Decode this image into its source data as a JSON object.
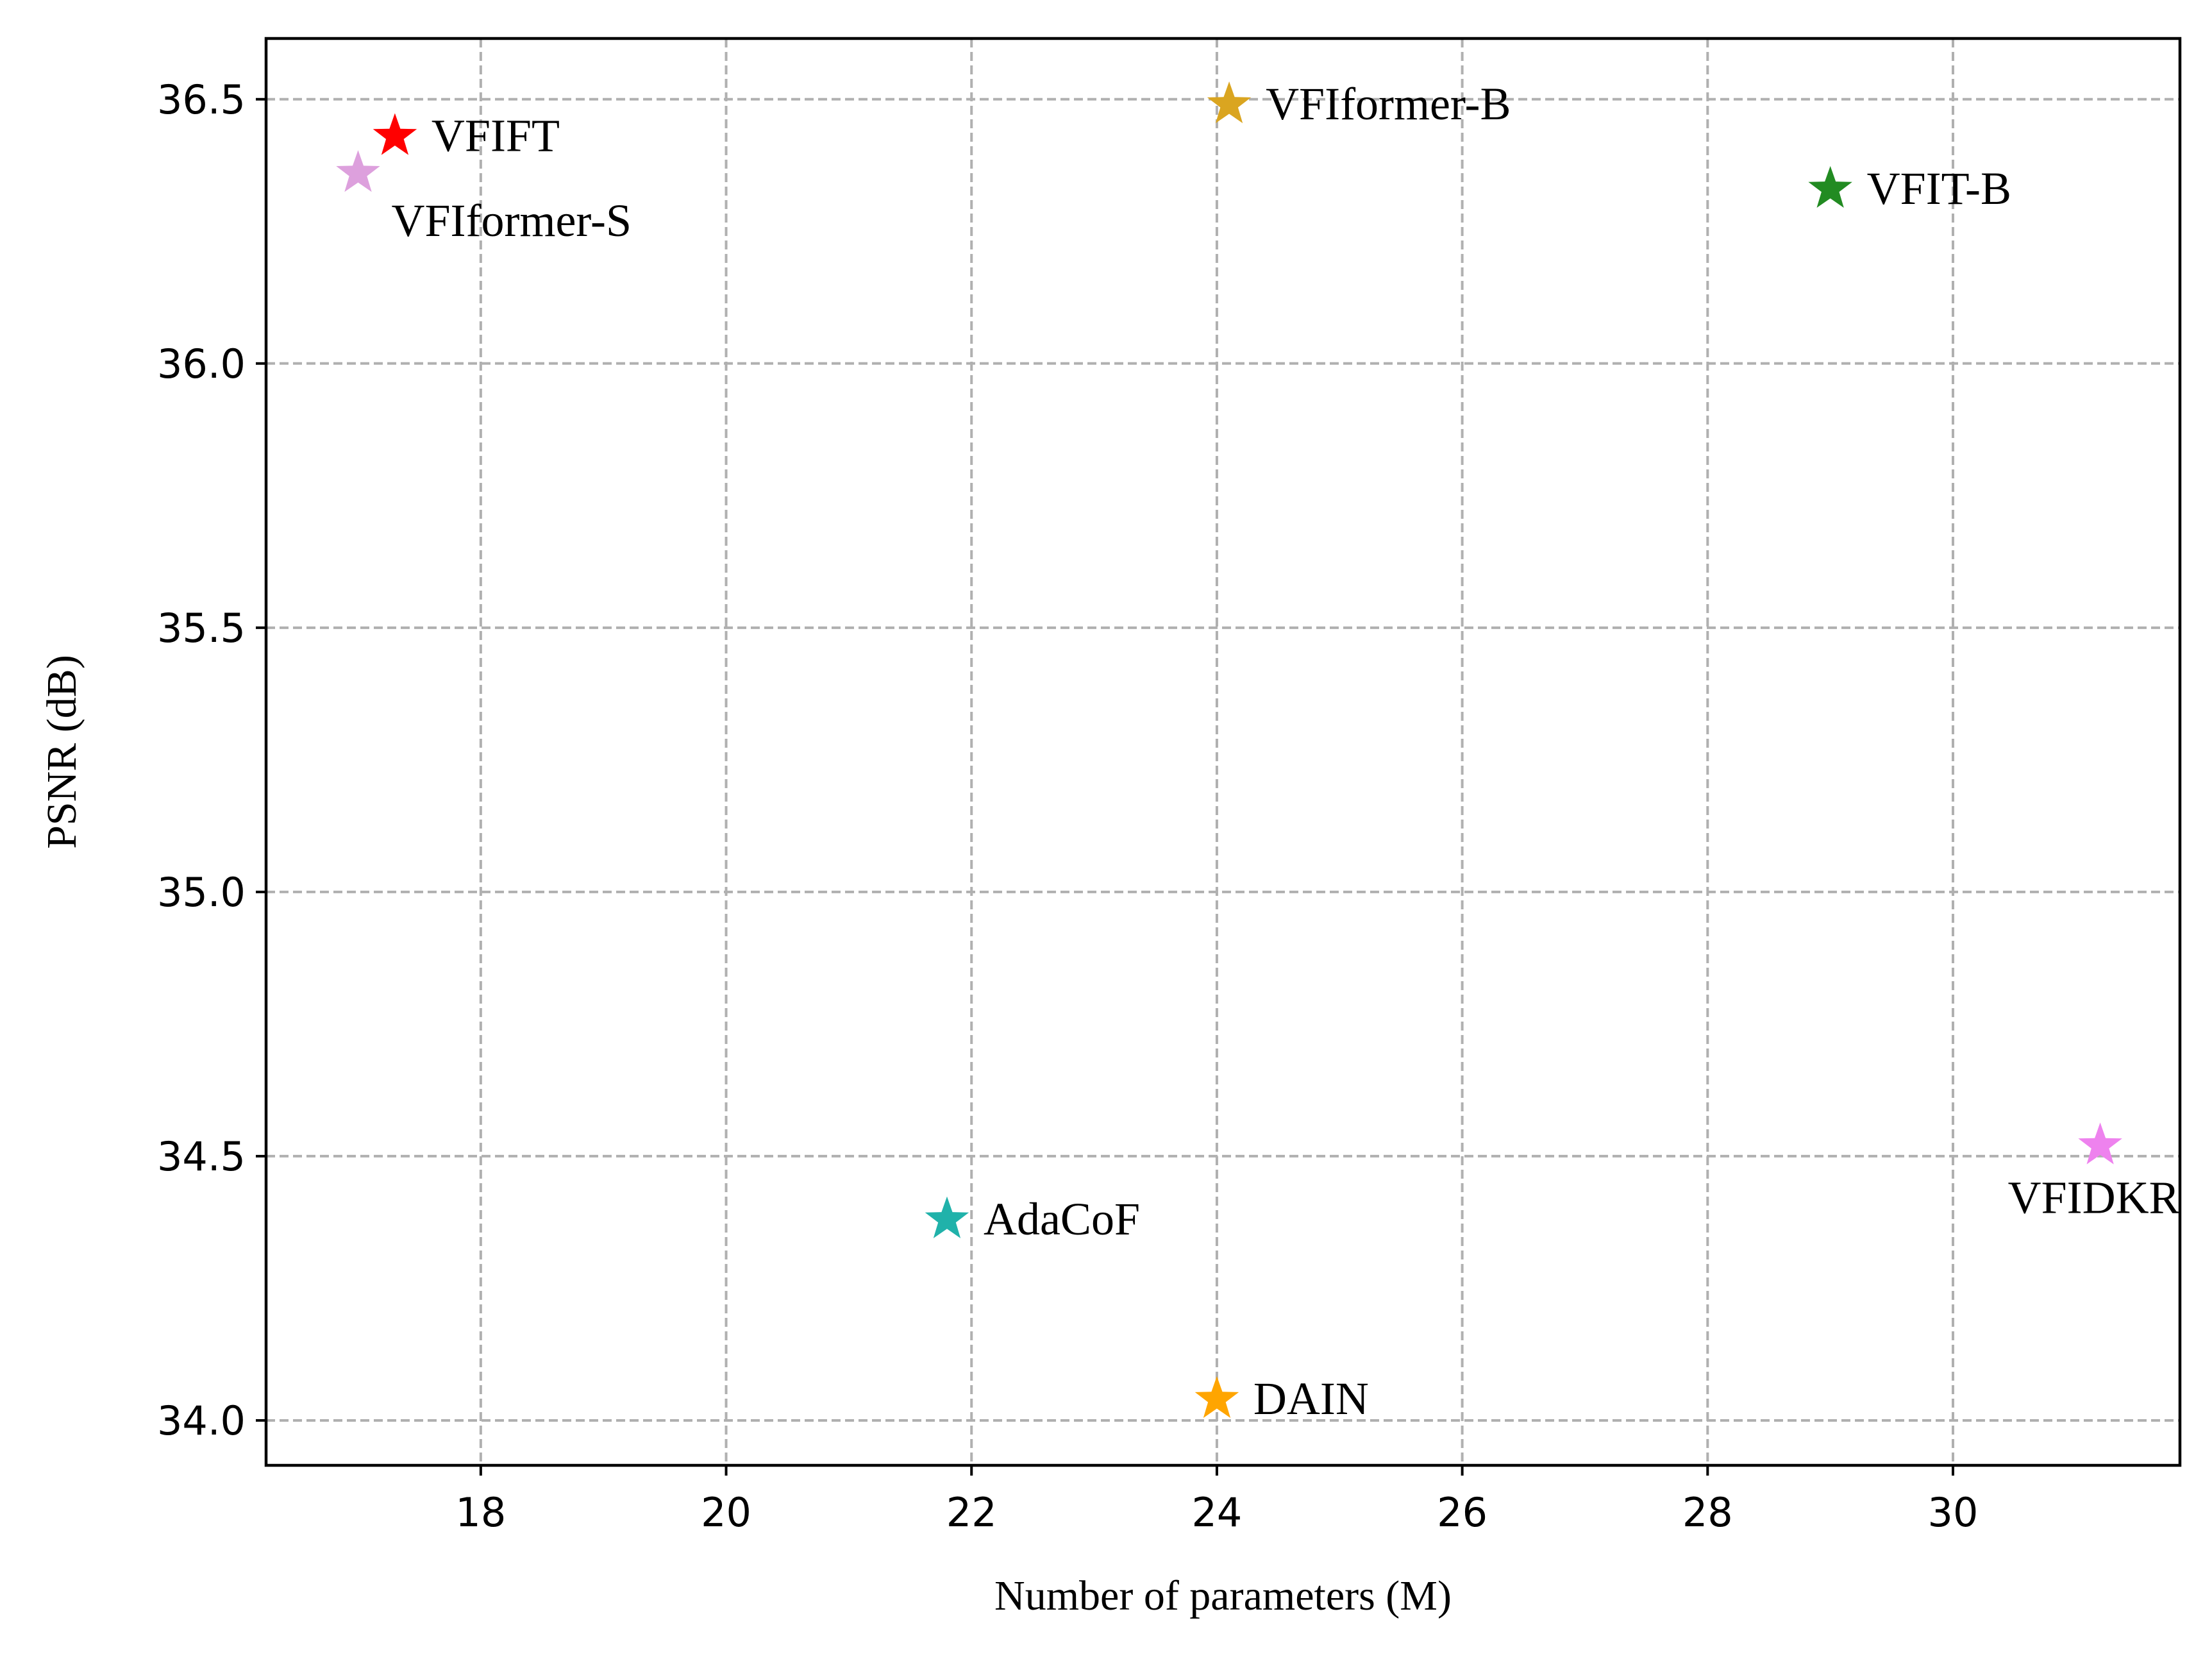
{
  "chart_data": {
    "type": "scatter",
    "xlabel": "Number of parameters (M)",
    "ylabel": "PSNR (dB)",
    "xlim": [
      16.25,
      31.85
    ],
    "ylim": [
      33.915,
      36.615
    ],
    "xticks": [
      18,
      20,
      22,
      24,
      26,
      28,
      30
    ],
    "yticks": [
      34.0,
      34.5,
      35.0,
      35.5,
      36.0,
      36.5
    ],
    "xtick_labels": [
      "18",
      "20",
      "22",
      "24",
      "26",
      "28",
      "30"
    ],
    "ytick_labels": [
      "34.0",
      "34.5",
      "35.0",
      "35.5",
      "36.0",
      "36.5"
    ],
    "grid": true,
    "marker": "star",
    "points": [
      {
        "name": "VFIFT",
        "x": 17.3,
        "y": 36.43,
        "color": "#ff0000",
        "label_pos": "right"
      },
      {
        "name": "VFIformer-S",
        "x": 17.0,
        "y": 36.36,
        "color": "#dda0dd",
        "label_pos": "below-right"
      },
      {
        "name": "VFIformer-B",
        "x": 24.1,
        "y": 36.49,
        "color": "#daa520",
        "label_pos": "right"
      },
      {
        "name": "VFIT-B",
        "x": 29.0,
        "y": 36.33,
        "color": "#228b22",
        "label_pos": "right"
      },
      {
        "name": "VFIDKR",
        "x": 31.2,
        "y": 34.52,
        "color": "#ee82ee",
        "label_pos": "below"
      },
      {
        "name": "AdaCoF",
        "x": 21.8,
        "y": 34.38,
        "color": "#20b2aa",
        "label_pos": "right"
      },
      {
        "name": "DAIN",
        "x": 24.0,
        "y": 34.04,
        "color": "#ffa500",
        "label_pos": "right"
      }
    ]
  }
}
